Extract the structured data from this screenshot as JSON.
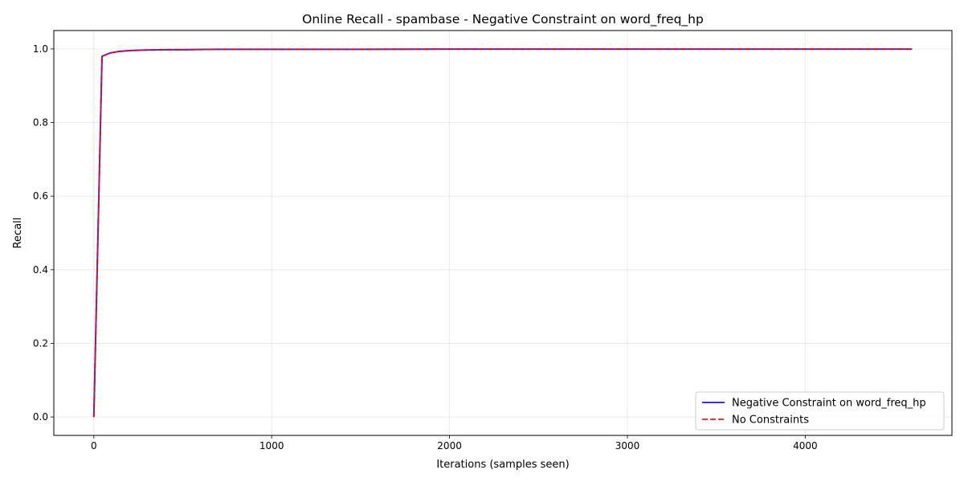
{
  "chart_data": {
    "type": "line",
    "title": "Online Recall - spambase - Negative Constraint on word_freq_hp",
    "xlabel": "Iterations (samples seen)",
    "ylabel": "Recall",
    "xlim": [
      -225,
      4825
    ],
    "ylim": [
      -0.05,
      1.05
    ],
    "xticks": [
      0,
      1000,
      2000,
      3000,
      4000
    ],
    "yticks": [
      0.0,
      0.2,
      0.4,
      0.6,
      0.8,
      1.0
    ],
    "xtick_labels": [
      "0",
      "1000",
      "2000",
      "3000",
      "4000"
    ],
    "ytick_labels": [
      "0.0",
      "0.2",
      "0.4",
      "0.6",
      "0.8",
      "1.0"
    ],
    "grid": true,
    "legend_position": "bottom-right",
    "series": [
      {
        "name": "Negative Constraint on word_freq_hp",
        "color": "#0000ff",
        "style": "solid",
        "x": [
          0,
          46,
          92,
          138,
          184,
          230,
          300,
          400,
          500,
          700,
          1000,
          1500,
          2000,
          2500,
          3000,
          3500,
          4000,
          4601
        ],
        "y": [
          0.0,
          0.98,
          0.989,
          0.993,
          0.995,
          0.996,
          0.997,
          0.998,
          0.998,
          0.999,
          0.999,
          0.999,
          0.9995,
          0.9995,
          0.9995,
          0.9995,
          0.9995,
          0.9995
        ]
      },
      {
        "name": "No Constraints",
        "color": "#ff0000",
        "style": "dashed",
        "x": [
          0,
          46,
          92,
          138,
          184,
          230,
          300,
          400,
          500,
          700,
          1000,
          1500,
          2000,
          2500,
          3000,
          3500,
          4000,
          4601
        ],
        "y": [
          0.0,
          0.98,
          0.989,
          0.993,
          0.995,
          0.996,
          0.997,
          0.998,
          0.998,
          0.999,
          0.999,
          0.999,
          0.9995,
          0.9995,
          0.9995,
          0.9995,
          0.9995,
          0.9995
        ]
      }
    ]
  }
}
